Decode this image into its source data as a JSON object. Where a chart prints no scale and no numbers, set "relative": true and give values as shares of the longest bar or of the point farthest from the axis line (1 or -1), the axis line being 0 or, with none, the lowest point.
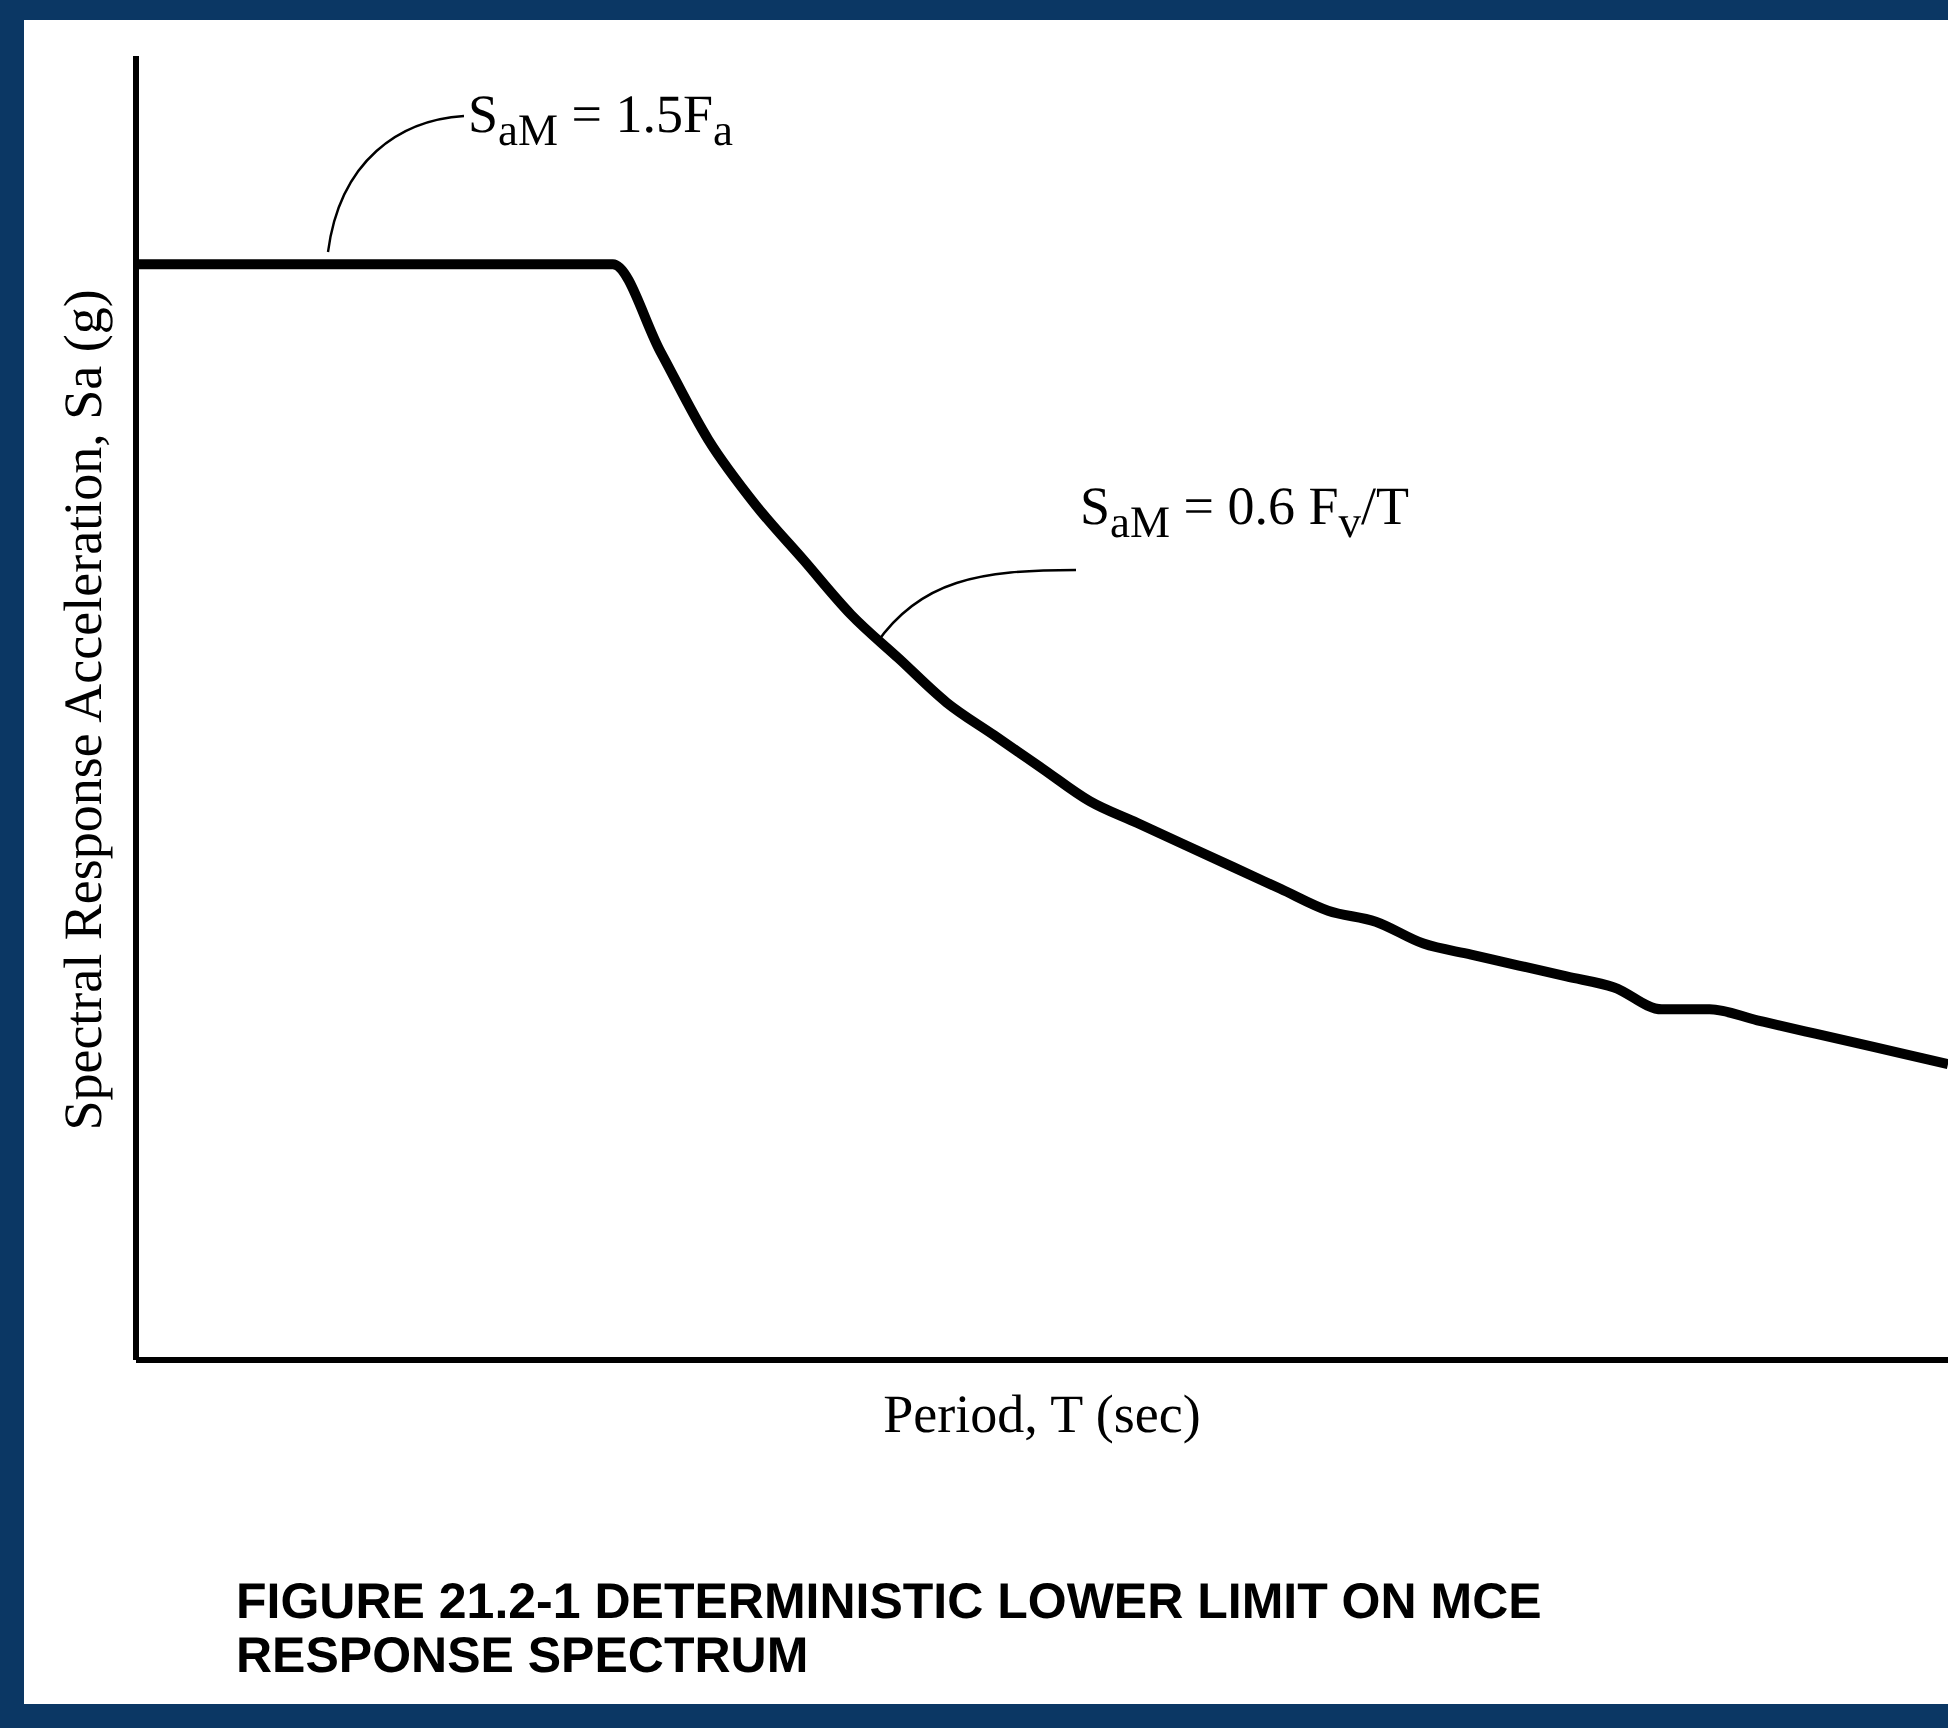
{
  "chart_data": {
    "type": "line",
    "title": "FIGURE 21.2-1  DETERMINISTIC LOWER LIMIT ON MCE RESPONSE SPECTRUM",
    "xlabel": "Period, T (sec)",
    "ylabel": "Spectral Response Acceleration, Sa (g)",
    "relative": true,
    "categories": [
      null,
      null,
      null,
      null,
      null,
      null,
      null,
      null,
      null,
      null,
      null,
      null,
      null,
      null,
      null,
      null,
      null,
      null,
      null,
      null,
      null,
      null,
      null,
      null,
      null,
      null,
      null,
      null,
      null,
      null,
      null,
      null,
      null,
      null,
      null,
      null,
      null,
      null,
      null
    ],
    "series": [
      {
        "color": "#000000",
        "values": [
          1,
          1,
          1,
          1,
          1,
          1,
          1,
          1,
          1,
          1,
          1,
          0.92,
          0.84,
          0.78,
          0.73,
          0.68,
          0.64,
          0.6,
          0.57,
          0.54,
          0.51,
          0.49,
          0.47,
          0.45,
          0.43,
          0.41,
          0.4,
          0.38,
          0.37,
          0.36,
          0.35,
          0.34,
          0.32,
          0.32,
          0.31,
          0.3,
          0.29,
          0.28,
          0.27
        ]
      }
    ],
    "annotations": [
      "S$_{aM}$ = 1.5F$_{a}$",
      "S$_{aM}$ = 0.6 F$_{v}$/T"
    ]
  }
}
